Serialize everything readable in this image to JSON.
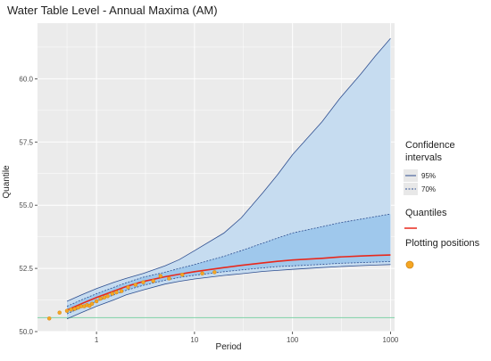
{
  "chart_data": {
    "type": "line",
    "title": "Water Table Level - Annual Maxima (AM)",
    "xlabel": "Period",
    "ylabel": "Quantile",
    "x_scale": "log",
    "xlim": [
      0.25,
      1100
    ],
    "ylim": [
      50.0,
      62.2
    ],
    "x_ticks": [
      1,
      10,
      100,
      1000
    ],
    "x_tick_labels": [
      "1",
      "10",
      "100",
      "1000"
    ],
    "y_ticks": [
      50.0,
      52.5,
      55.0,
      57.5,
      60.0
    ],
    "y_tick_labels": [
      "50.0",
      "52.5",
      "55.0",
      "57.5",
      "60.0"
    ],
    "grid": true,
    "reference_line": {
      "y": 50.55,
      "color": "#7fd1a7"
    },
    "legend": {
      "position": "right",
      "ci_title": "Confidence intervals",
      "ci_items": [
        "95%",
        "70%"
      ],
      "quantiles_title": "Quantiles",
      "plotting_title": "Plotting positions"
    },
    "quantiles": {
      "x": [
        0.5,
        0.7,
        1,
        1.5,
        2,
        3,
        5,
        7,
        10,
        20,
        30,
        50,
        70,
        100,
        200,
        300,
        500,
        700,
        1000
      ],
      "y": [
        50.85,
        51.1,
        51.35,
        51.6,
        51.78,
        51.98,
        52.17,
        52.27,
        52.37,
        52.53,
        52.62,
        52.72,
        52.78,
        52.83,
        52.9,
        52.95,
        52.99,
        53.01,
        53.03
      ]
    },
    "ci_95": {
      "x": [
        0.5,
        0.7,
        1,
        1.5,
        2,
        3,
        5,
        7,
        10,
        20,
        30,
        50,
        70,
        100,
        200,
        300,
        500,
        700,
        1000
      ],
      "lower": [
        50.5,
        50.75,
        51.0,
        51.25,
        51.45,
        51.65,
        51.88,
        51.99,
        52.08,
        52.22,
        52.29,
        52.38,
        52.42,
        52.46,
        52.53,
        52.57,
        52.61,
        52.63,
        52.65
      ],
      "upper": [
        51.2,
        51.45,
        51.7,
        51.95,
        52.1,
        52.3,
        52.6,
        52.85,
        53.2,
        53.9,
        54.5,
        55.5,
        56.2,
        57.0,
        58.3,
        59.2,
        60.2,
        60.9,
        61.6
      ]
    },
    "ci_70": {
      "x": [
        0.5,
        0.7,
        1,
        1.5,
        2,
        3,
        5,
        7,
        10,
        20,
        30,
        50,
        70,
        100,
        200,
        300,
        500,
        700,
        1000
      ],
      "lower": [
        50.7,
        50.95,
        51.2,
        51.45,
        51.63,
        51.83,
        52.03,
        52.14,
        52.23,
        52.37,
        52.44,
        52.52,
        52.57,
        52.6,
        52.66,
        52.7,
        52.73,
        52.75,
        52.77
      ],
      "upper": [
        51.0,
        51.25,
        51.5,
        51.75,
        51.93,
        52.15,
        52.35,
        52.5,
        52.65,
        52.98,
        53.2,
        53.5,
        53.7,
        53.9,
        54.15,
        54.3,
        54.45,
        54.55,
        54.65
      ]
    },
    "plotting_positions": {
      "x": [
        0.33,
        0.42,
        0.5,
        0.55,
        0.6,
        0.65,
        0.7,
        0.75,
        0.8,
        0.85,
        0.9,
        1.0,
        1.1,
        1.2,
        1.3,
        1.45,
        1.6,
        1.8,
        2.1,
        2.5,
        3.0,
        3.8,
        4.5,
        5.5,
        7.5,
        12.0,
        16.0
      ],
      "y": [
        50.52,
        50.75,
        50.82,
        50.87,
        50.9,
        50.95,
        51.0,
        51.0,
        51.05,
        51.02,
        51.1,
        51.2,
        51.3,
        51.35,
        51.4,
        51.5,
        51.55,
        51.6,
        51.75,
        51.85,
        51.95,
        52.0,
        52.2,
        52.1,
        52.25,
        52.3,
        52.35
      ]
    },
    "colors": {
      "panel_bg": "#ebebeb",
      "grid": "#ffffff",
      "ci95_fill": "#c6dcf0",
      "ci70_fill": "#9fc8ec",
      "ci_line": "#2e4e8f",
      "quantile_line": "#e8281c",
      "points_fill": "#f5a623",
      "points_stroke": "#d2891a"
    }
  }
}
